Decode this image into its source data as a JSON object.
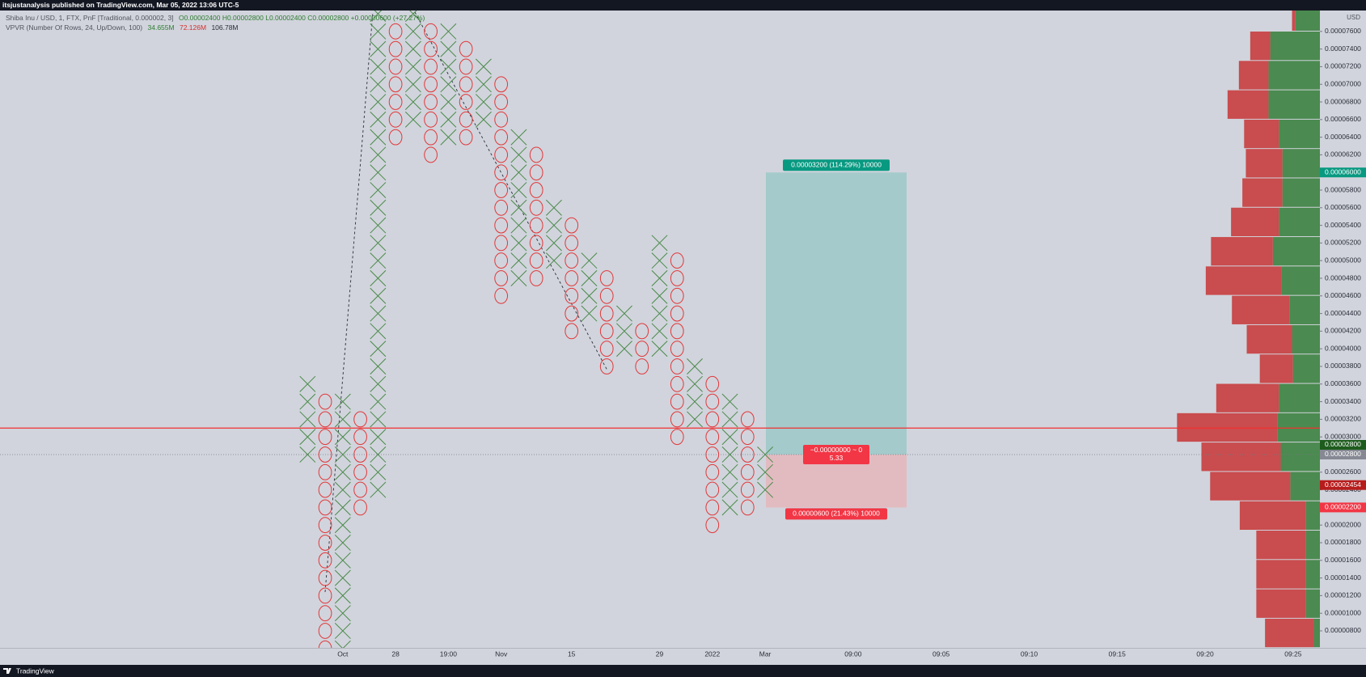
{
  "header": {
    "text": "itsjustanalysis published on TradingView.com, Mar 05, 2022 13:06 UTC-5"
  },
  "footer": {
    "brand": "TradingView"
  },
  "chart_data": {
    "type": "pnf",
    "legend": {
      "symbol": "Shiba Inu / USD, 1, FTX, PnF [Traditional, 0.000002, 3]",
      "ohlc": "O0.00002400  H0.00002800  L0.00002400  C0.00002800  +0.00000600 (+27.27%)",
      "indicator": "VPVR (Number Of Rows, 24, Up/Down, 100)",
      "up_volume": "34.655M",
      "down_volume": "72.126M",
      "total_volume": "106.78M"
    },
    "axis_unit": "USD",
    "box_size": 2e-06,
    "x_color": "#4a8a4a",
    "o_color": "#e2373a",
    "ylim": [
      6.07e-06,
      7.837e-05
    ],
    "yticks": [
      {
        "value": 8e-06,
        "label": "0.00000800"
      },
      {
        "value": 1e-05,
        "label": "0.00001000"
      },
      {
        "value": 1.2e-05,
        "label": "0.00001200"
      },
      {
        "value": 1.4e-05,
        "label": "0.00001400"
      },
      {
        "value": 1.6e-05,
        "label": "0.00001600"
      },
      {
        "value": 1.8e-05,
        "label": "0.00001800"
      },
      {
        "value": 2e-05,
        "label": "0.00002000"
      },
      {
        "value": 2.2e-05,
        "label": "0.00002200"
      },
      {
        "value": 2.4e-05,
        "label": "0.00002400"
      },
      {
        "value": 2.6e-05,
        "label": "0.00002600"
      },
      {
        "value": 2.8e-05,
        "label": "0.00002800"
      },
      {
        "value": 3e-05,
        "label": "0.00003000"
      },
      {
        "value": 3.2e-05,
        "label": "0.00003200"
      },
      {
        "value": 3.4e-05,
        "label": "0.00003400"
      },
      {
        "value": 3.6e-05,
        "label": "0.00003600"
      },
      {
        "value": 3.8e-05,
        "label": "0.00003800"
      },
      {
        "value": 4e-05,
        "label": "0.00004000"
      },
      {
        "value": 4.2e-05,
        "label": "0.00004200"
      },
      {
        "value": 4.4e-05,
        "label": "0.00004400"
      },
      {
        "value": 4.6e-05,
        "label": "0.00004600"
      },
      {
        "value": 4.8e-05,
        "label": "0.00004800"
      },
      {
        "value": 5e-05,
        "label": "0.00005000"
      },
      {
        "value": 5.2e-05,
        "label": "0.00005200"
      },
      {
        "value": 5.4e-05,
        "label": "0.00005400"
      },
      {
        "value": 5.6e-05,
        "label": "0.00005600"
      },
      {
        "value": 5.8e-05,
        "label": "0.00005800"
      },
      {
        "value": 6e-05,
        "label": "0.00006000"
      },
      {
        "value": 6.2e-05,
        "label": "0.00006200"
      },
      {
        "value": 6.4e-05,
        "label": "0.00006400"
      },
      {
        "value": 6.6e-05,
        "label": "0.00006600"
      },
      {
        "value": 6.8e-05,
        "label": "0.00006800"
      },
      {
        "value": 7e-05,
        "label": "0.00007000"
      },
      {
        "value": 7.2e-05,
        "label": "0.00007200"
      },
      {
        "value": 7.4e-05,
        "label": "0.00007400"
      },
      {
        "value": 7.6e-05,
        "label": "0.00007600"
      }
    ],
    "categories": [
      null,
      null,
      "Oct",
      null,
      null,
      "28",
      null,
      null,
      "19:00",
      null,
      null,
      "Nov",
      null,
      null,
      null,
      "15",
      null,
      null,
      null,
      null,
      "29",
      null,
      null,
      "2022",
      null,
      null,
      "Mar",
      null,
      null,
      null,
      null,
      "09:00",
      null,
      null,
      null,
      null,
      "09:05",
      null,
      null,
      null,
      null,
      "09:10",
      null,
      null,
      null,
      null,
      "09:15",
      null,
      null,
      null,
      null,
      "09:20",
      null,
      null,
      null,
      null,
      "09:25",
      null
    ],
    "columns": [
      {
        "type": "X",
        "low": 2.8e-05,
        "high": 3.6e-05
      },
      {
        "type": "O",
        "low": 6e-06,
        "high": 3.4e-05
      },
      {
        "type": "X",
        "low": 6e-06,
        "high": 3.4e-05
      },
      {
        "type": "O",
        "low": 2.2e-05,
        "high": 3.2e-05
      },
      {
        "type": "X",
        "low": 2.4e-05,
        "high": 7.8e-05
      },
      {
        "type": "O",
        "low": 6.4e-05,
        "high": 7.6e-05
      },
      {
        "type": "X",
        "low": 6.6e-05,
        "high": 7.8e-05
      },
      {
        "type": "O",
        "low": 6.2e-05,
        "high": 7.6e-05
      },
      {
        "type": "X",
        "low": 6.4e-05,
        "high": 7.6e-05
      },
      {
        "type": "O",
        "low": 6.4e-05,
        "high": 7.4e-05
      },
      {
        "type": "X",
        "low": 6.6e-05,
        "high": 7.2e-05
      },
      {
        "type": "O",
        "low": 4.6e-05,
        "high": 7e-05
      },
      {
        "type": "X",
        "low": 4.8e-05,
        "high": 6.4e-05
      },
      {
        "type": "O",
        "low": 4.8e-05,
        "high": 6.2e-05
      },
      {
        "type": "X",
        "low": 5e-05,
        "high": 5.6e-05
      },
      {
        "type": "O",
        "low": 4.2e-05,
        "high": 5.4e-05
      },
      {
        "type": "X",
        "low": 4.4e-05,
        "high": 5e-05
      },
      {
        "type": "O",
        "low": 3.8e-05,
        "high": 4.8e-05
      },
      {
        "type": "X",
        "low": 4e-05,
        "high": 4.4e-05
      },
      {
        "type": "O",
        "low": 3.8e-05,
        "high": 4.2e-05
      },
      {
        "type": "X",
        "low": 4e-05,
        "high": 5.2e-05
      },
      {
        "type": "O",
        "low": 3e-05,
        "high": 5e-05
      },
      {
        "type": "X",
        "low": 3.2e-05,
        "high": 3.8e-05
      },
      {
        "type": "O",
        "low": 2e-05,
        "high": 3.6e-05
      },
      {
        "type": "X",
        "low": 2.2e-05,
        "high": 3.4e-05
      },
      {
        "type": "O",
        "low": 2.2e-05,
        "high": 3.2e-05
      },
      {
        "type": "X",
        "low": 2.4e-05,
        "high": 2.8e-05
      }
    ],
    "horizontal_line": {
      "value": 3.1e-05,
      "color": "#f23030"
    },
    "last_price": 2.8e-05,
    "volume_profile": {
      "low": 6.1e-06,
      "row_height": 3.33e-06,
      "up_color": "#4b8a50",
      "down_color": "#c94c4e",
      "up": [
        7,
        16,
        16,
        16,
        16,
        34,
        45,
        49,
        47,
        31,
        32,
        35,
        44,
        54,
        47,
        43,
        43,
        47,
        59,
        59,
        57,
        28
      ],
      "down": [
        56,
        57,
        57,
        57,
        76,
        92,
        91,
        115,
        72,
        38,
        52,
        66,
        87,
        71,
        55,
        46,
        42,
        40,
        47,
        34,
        23,
        4
      ]
    },
    "position": {
      "entry": 2.8e-05,
      "target": 6e-05,
      "stop": 2.2e-05,
      "target_label": "0.00003200 (114.29%) 10000",
      "entry_label": "−0.00000000 ~ 0",
      "ratio": 5.33,
      "stop_label": "0.00000600 (21.43%) 10000"
    },
    "price_tags": [
      {
        "value": 6e-05,
        "label": "0.00006000",
        "color": "#089981"
      },
      {
        "value": 2.8e-05,
        "label": "0.00002800",
        "color": "#868993"
      },
      {
        "value": 2.8e-05,
        "label": "0.00002800",
        "color": "#1e5c1e"
      },
      {
        "value": 2.454e-05,
        "label": "0.00002454",
        "color": "#b71c1c"
      },
      {
        "value": 2.2e-05,
        "label": "0.00002200",
        "color": "#f23645"
      }
    ]
  }
}
